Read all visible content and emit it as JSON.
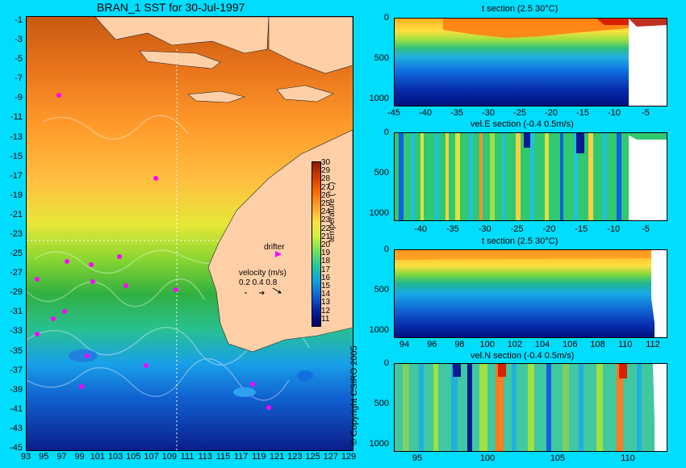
{
  "map": {
    "title": "BRAN_1 SST for 30-Jul-1997",
    "lat_labels": [
      "-1",
      "-3",
      "-5",
      "-7",
      "-9",
      "-11",
      "-13",
      "-15",
      "-17",
      "-19",
      "-21",
      "-23",
      "-25",
      "-27",
      "-29",
      "-31",
      "-33",
      "-35",
      "-37",
      "-39",
      "-41",
      "-43",
      "-45"
    ],
    "lon_labels": [
      "93",
      "95",
      "97",
      "99",
      "101",
      "103",
      "105",
      "107",
      "109",
      "111",
      "113",
      "115",
      "117",
      "119",
      "121",
      "123",
      "125",
      "127",
      "129"
    ],
    "colorbar_ticks": [
      "30",
      "29",
      "28",
      "27",
      "26",
      "25",
      "24",
      "23",
      "22",
      "21",
      "20",
      "19",
      "18",
      "17",
      "16",
      "15",
      "14",
      "13",
      "12",
      "11"
    ],
    "colorbar_label": "temperature (°C)",
    "drifter_label": "drifter",
    "velocity_label": "velocity (m/s)",
    "velocity_values": "0.2 0.4 0.8",
    "copyright": "© Copyright CSIRO 2005",
    "colors": {
      "land": "#ffd0a8",
      "background": "#00ddff"
    }
  },
  "sections": [
    {
      "title": "t section (2.5      30°C)",
      "y_ticks": [
        "0",
        "500",
        "1000"
      ],
      "x_ticks": [
        "-45",
        "-40",
        "-35",
        "-30",
        "-25",
        "-20",
        "-15",
        "-10",
        "-5"
      ]
    },
    {
      "title": "vel.E section (-0.4      0.5m/s)",
      "y_ticks": [
        "0",
        "500",
        "1000"
      ],
      "x_ticks": [
        "-40",
        "-35",
        "-30",
        "-25",
        "-20",
        "-15",
        "-10",
        "-5"
      ]
    },
    {
      "title": "t section (2.5      30°C)",
      "y_ticks": [
        "0",
        "500",
        "1000"
      ],
      "x_ticks": [
        "94",
        "96",
        "98",
        "100",
        "102",
        "104",
        "106",
        "108",
        "110",
        "112"
      ]
    },
    {
      "title": "vel.N section (-0.4      0.5m/s)",
      "y_ticks": [
        "0",
        "500",
        "1000"
      ],
      "x_ticks": [
        "95",
        "100",
        "105",
        "110"
      ]
    }
  ]
}
